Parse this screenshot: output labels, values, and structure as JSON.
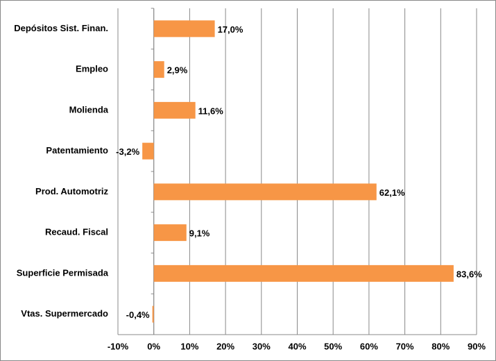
{
  "chart_data": {
    "type": "bar",
    "orientation": "horizontal",
    "categories": [
      "Depósitos Sist. Finan.",
      "Empleo",
      "Molienda",
      "Patentamiento",
      "Prod. Automotriz",
      "Recaud. Fiscal",
      "Superficie Permisada",
      "Vtas. Supermercado"
    ],
    "values": [
      17.0,
      2.9,
      11.6,
      -3.2,
      62.1,
      9.1,
      83.6,
      -0.4
    ],
    "value_labels": [
      "17,0%",
      "2,9%",
      "11,6%",
      "-3,2%",
      "62,1%",
      "9,1%",
      "83,6%",
      "-0,4%"
    ],
    "color": "#f79646",
    "xlim": [
      -10,
      90
    ],
    "xticks": [
      {
        "value": -10,
        "label": "-10%"
      },
      {
        "value": 0,
        "label": "0%"
      },
      {
        "value": 10,
        "label": "10%"
      },
      {
        "value": 20,
        "label": "20%"
      },
      {
        "value": 30,
        "label": "30%"
      },
      {
        "value": 40,
        "label": "40%"
      },
      {
        "value": 50,
        "label": "50%"
      },
      {
        "value": 60,
        "label": "60%"
      },
      {
        "value": 70,
        "label": "70%"
      },
      {
        "value": 80,
        "label": "80%"
      },
      {
        "value": 90,
        "label": "90%"
      }
    ],
    "grid": true
  }
}
